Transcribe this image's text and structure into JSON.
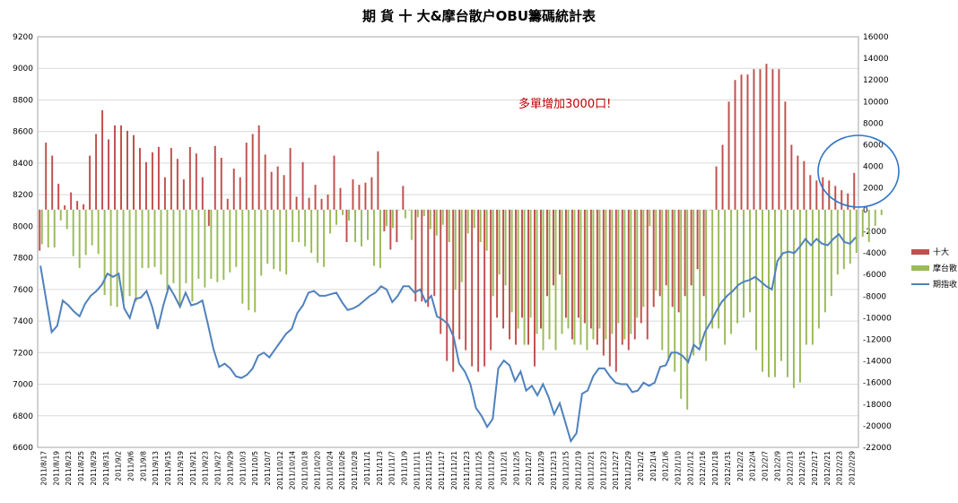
{
  "chart_data": {
    "type": "bar+line",
    "title": "期 貨 十 大&摩台散户OBU籌碼統計表",
    "annotation": "多單增加3000口!",
    "left_axis": {
      "min": 6600,
      "max": 9200,
      "step": 200,
      "ticks": [
        "6600",
        "6800",
        "7000",
        "7200",
        "7400",
        "7600",
        "7800",
        "8000",
        "8200",
        "8400",
        "8600",
        "8800",
        "9000",
        "9200"
      ]
    },
    "right_axis": {
      "min": -22000,
      "max": 16000,
      "step": 2000,
      "ticks": [
        "-22000",
        "-20000",
        "-18000",
        "-16000",
        "-14000",
        "-12000",
        "-10000",
        "-8000",
        "-6000",
        "-4000",
        "-2000",
        "0",
        "2000",
        "4000",
        "6000",
        "8000",
        "10000",
        "12000",
        "14000",
        "16000"
      ]
    },
    "x_tick_labels": [
      "2011/8/17",
      "2011/8/19",
      "2011/8/23",
      "2011/8/25",
      "2011/8/29",
      "2011/8/31",
      "2011/9/2",
      "2011/9/6",
      "2011/9/8",
      "2011/9/13",
      "2011/9/15",
      "2011/9/19",
      "2011/9/21",
      "2011/9/23",
      "2011/9/27",
      "2011/9/29",
      "2011/10/3",
      "2011/10/5",
      "2011/10/7",
      "2011/10/12",
      "2011/10/14",
      "2011/10/18",
      "2011/10/20",
      "2011/10/24",
      "2011/10/26",
      "2011/10/28",
      "2011/11/1",
      "2011/11/3",
      "2011/11/7",
      "2011/11/9",
      "2011/11/11",
      "2011/11/15",
      "2011/11/17",
      "2011/11/21",
      "2011/11/23",
      "2011/11/25",
      "2011/11/29",
      "2011/12/1",
      "2011/12/5",
      "2011/12/7",
      "2011/12/9",
      "2011/12/13",
      "2011/12/15",
      "2011/12/19",
      "2011/12/21",
      "2011/12/23",
      "2011/12/27",
      "2011/12/29",
      "2012/1/2",
      "2012/1/4",
      "2012/1/6",
      "2012/1/10",
      "2012/1/12",
      "2012/1/16",
      "2012/1/18",
      "2012/1/31",
      "2012/2/2",
      "2012/2/4",
      "2012/2/7",
      "2012/2/9",
      "2012/2/13",
      "2012/2/15",
      "2012/2/17",
      "2012/2/21",
      "2012/2/23",
      "2012/2/29"
    ],
    "legend": [
      "十大",
      "摩台散",
      "期指收"
    ],
    "colors": {
      "top10": "#c0504d",
      "mtretail": "#9bbb59",
      "index": "#4f81bd",
      "circle": "#2e75c8",
      "annotation": "#c00000"
    },
    "series": [
      {
        "name": "十大",
        "axis": "right",
        "values": [
          -3800,
          6200,
          5000,
          2400,
          400,
          1600,
          800,
          500,
          5000,
          7000,
          9200,
          6500,
          7800,
          7800,
          7300,
          6900,
          5700,
          4400,
          5300,
          5800,
          3000,
          5700,
          4700,
          2800,
          5800,
          5200,
          3000,
          -1500,
          5900,
          4800,
          1000,
          3800,
          3000,
          6200,
          7000,
          7800,
          5100,
          3500,
          4000,
          3200,
          5700,
          1200,
          4400,
          1100,
          2300,
          1000,
          1400,
          5000,
          2000,
          -3000,
          2800,
          2300,
          2500,
          3000,
          5400,
          -2000,
          -3700,
          -3000,
          2200,
          0,
          -8500,
          -8500,
          -9000,
          -8000,
          -11500,
          -14000,
          -15000,
          -12000,
          -13000,
          -14500,
          -15000,
          -14500,
          -13000,
          -10000,
          -11000,
          -12000,
          -12500,
          -10000,
          -12500,
          -14500,
          -11000,
          -8000,
          -7000,
          -6000,
          -10000,
          -12000,
          -10000,
          -10500,
          -11000,
          -12500,
          -13500,
          -14500,
          -15000,
          -12500,
          -13000,
          -12000,
          -10500,
          -12000,
          -9000,
          -8000,
          -7000,
          -9000,
          -9500,
          -8000,
          -7000,
          -5500,
          -8000,
          0,
          4000,
          6000,
          10000,
          12000,
          12500,
          12500,
          13000,
          13000,
          13500,
          13000,
          13000,
          10000,
          6000,
          5000,
          4500,
          3200,
          2700,
          3000,
          2700,
          2200,
          1800,
          1500,
          3400
        ]
      },
      {
        "name": "摩台散",
        "axis": "right",
        "values": [
          -3200,
          -3500,
          -3500,
          -1000,
          -1800,
          -4300,
          -5400,
          -4200,
          -3300,
          -4100,
          -7900,
          -8900,
          -9000,
          -8700,
          -8000,
          -8500,
          -5400,
          -5400,
          -5300,
          -6000,
          -7400,
          -6800,
          -9000,
          -6800,
          -8500,
          -6400,
          -7200,
          -6400,
          -6700,
          -6500,
          -5800,
          -5300,
          -8700,
          -9300,
          -9500,
          -6100,
          -5000,
          -5500,
          -5700,
          -6000,
          -3000,
          -3000,
          -3400,
          -4000,
          -4900,
          -5300,
          -2200,
          -1400,
          -500,
          -1000,
          -3000,
          -3400,
          -2800,
          -5200,
          -5400,
          -1500,
          -1700,
          0,
          -800,
          -2800,
          -700,
          -600,
          -1800,
          -2400,
          -1400,
          -3000,
          -7400,
          -6700,
          -2200,
          -1700,
          -3000,
          -3800,
          -8000,
          -6000,
          -7000,
          -9500,
          -11000,
          -12500,
          -10000,
          -11500,
          -13000,
          -12000,
          -13000,
          -11500,
          -11000,
          -12500,
          -12500,
          -13000,
          -12000,
          -11000,
          -12000,
          -11500,
          -10500,
          -12000,
          -11500,
          -10000,
          -9000,
          -1500,
          -7500,
          -13000,
          -14000,
          -15000,
          -17500,
          -18500,
          -13500,
          -12500,
          -14000,
          -11000,
          -11000,
          -12500,
          -11500,
          -10500,
          -10000,
          -9500,
          -13000,
          -15000,
          -15500,
          -15500,
          -14000,
          -15500,
          -16500,
          -16000,
          -12500,
          -12500,
          -11000,
          -9500,
          -8000,
          -6000,
          -5500,
          -5000,
          -4000,
          -2500,
          -3000,
          -1500,
          -500
        ]
      },
      {
        "name": "期指收",
        "axis": "left",
        "values": [
          7750,
          7540,
          7330,
          7370,
          7530,
          7500,
          7460,
          7430,
          7510,
          7560,
          7590,
          7630,
          7700,
          7680,
          7700,
          7480,
          7420,
          7540,
          7550,
          7590,
          7490,
          7350,
          7500,
          7620,
          7560,
          7490,
          7580,
          7500,
          7510,
          7530,
          7380,
          7220,
          7110,
          7130,
          7100,
          7050,
          7040,
          7060,
          7100,
          7180,
          7200,
          7170,
          7220,
          7270,
          7320,
          7350,
          7450,
          7500,
          7580,
          7590,
          7560,
          7560,
          7570,
          7580,
          7520,
          7470,
          7480,
          7500,
          7530,
          7560,
          7580,
          7620,
          7600,
          7520,
          7560,
          7620,
          7620,
          7580,
          7600,
          7520,
          7560,
          7430,
          7410,
          7380,
          7300,
          7130,
          7080,
          7000,
          6850,
          6800,
          6730,
          6780,
          7100,
          7150,
          7120,
          7020,
          7080,
          6960,
          6990,
          6930,
          7000,
          6920,
          6810,
          6880,
          6760,
          6640,
          6690,
          6940,
          6960,
          7050,
          7100,
          7100,
          7050,
          7010,
          7000,
          7000,
          6950,
          6960,
          7010,
          6990,
          7010,
          7110,
          7120,
          7200,
          7200,
          7180,
          7140,
          7250,
          7220,
          7330,
          7390,
          7460,
          7520,
          7560,
          7590,
          7630,
          7650,
          7660,
          7680,
          7650,
          7620,
          7600,
          7780,
          7830,
          7840,
          7830,
          7870,
          7920,
          7880,
          7920,
          7890,
          7880,
          7920,
          7950,
          7900,
          7890,
          7930
        ]
      }
    ]
  }
}
